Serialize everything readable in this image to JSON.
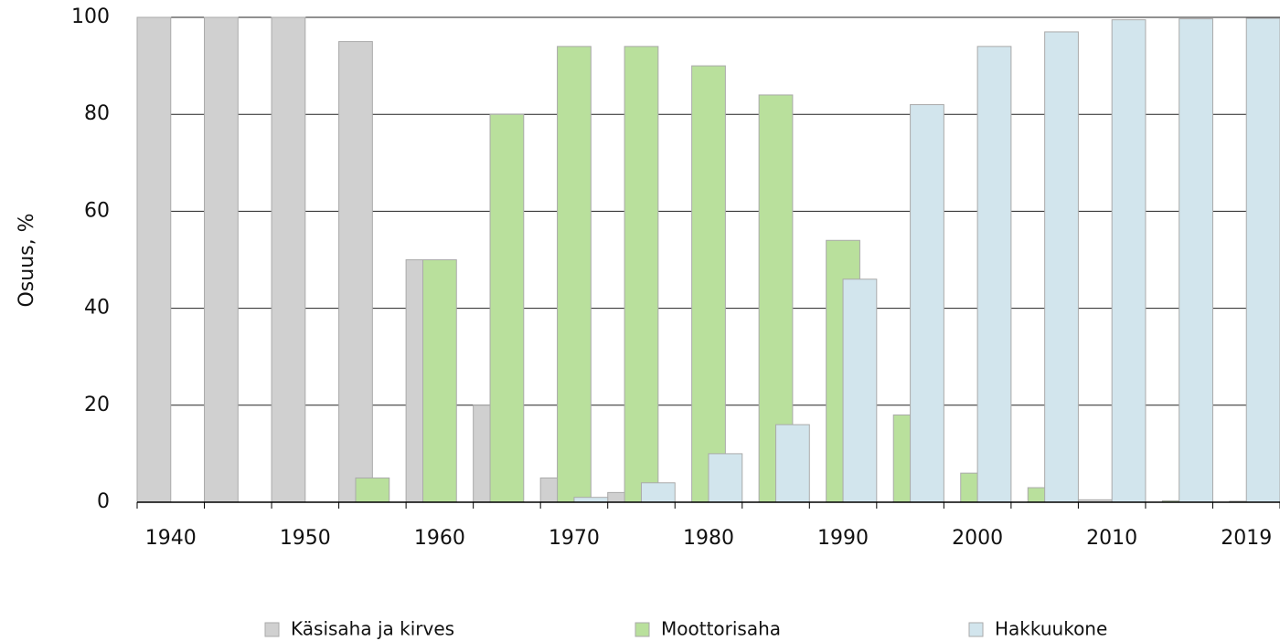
{
  "chart_data": {
    "type": "bar",
    "y_label": "Osuus, %",
    "categories": [
      "1940",
      null,
      "1950",
      null,
      "1960",
      null,
      "1970",
      null,
      "1980",
      null,
      "1990",
      null,
      "2000",
      null,
      "2010",
      null,
      "2019"
    ],
    "series": [
      {
        "name": "Käsisaha ja kirves",
        "color": "#d0d0d0",
        "values": [
          100,
          100,
          100,
          95,
          50,
          20,
          5,
          2,
          0,
          0,
          0,
          0,
          0,
          0,
          0.5,
          0,
          0
        ]
      },
      {
        "name": "Moottorisaha",
        "color": "#b9e09c",
        "values": [
          0,
          0,
          0,
          5,
          50,
          80,
          94,
          94,
          90,
          84,
          54,
          18,
          6,
          3,
          0,
          0.3,
          0.2
        ]
      },
      {
        "name": "Hakkuukone",
        "color": "#d2e5ed",
        "values": [
          0,
          0,
          0,
          0,
          0,
          0,
          1,
          4,
          10,
          16,
          46,
          82,
          94,
          97,
          99.5,
          99.7,
          99.8
        ]
      }
    ],
    "ylim": [
      0,
      100
    ],
    "yticks": [
      0,
      20,
      40,
      60,
      80,
      100
    ],
    "grid": true
  }
}
